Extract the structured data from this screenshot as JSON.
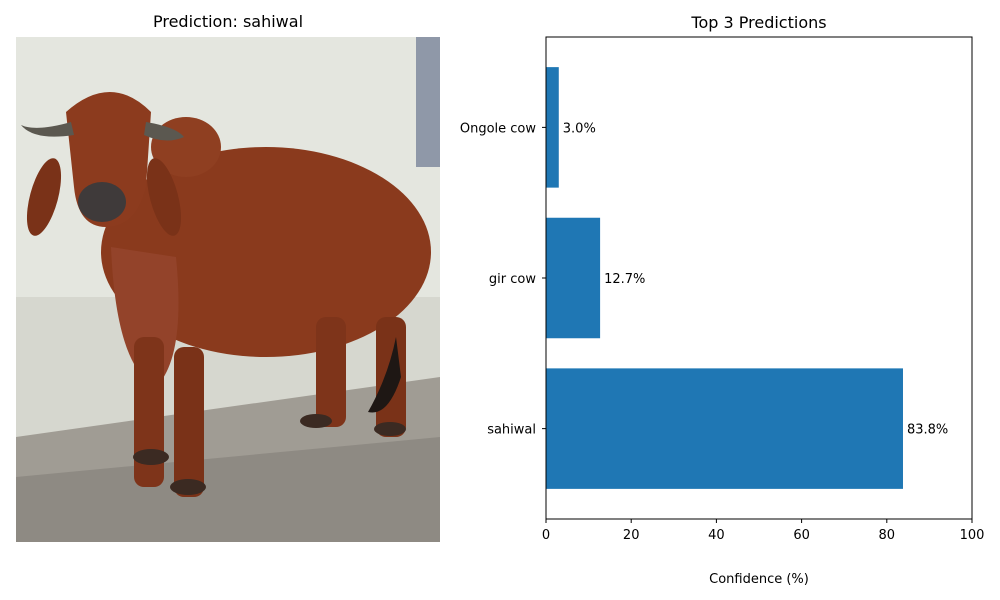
{
  "image_panel": {
    "title": "Prediction: sahiwal"
  },
  "colors": {
    "bar": "#1f77b4",
    "sky_wall": "#e6e8e1",
    "cow_body": "#8c3a1f",
    "ground": "#9e9a92"
  },
  "chart_data": {
    "type": "bar",
    "orientation": "horizontal",
    "title": "Top 3 Predictions",
    "xlabel": "Confidence (%)",
    "ylabel": "",
    "xlim": [
      0,
      100
    ],
    "xticks": [
      0,
      20,
      40,
      60,
      80,
      100
    ],
    "categories": [
      "sahiwal",
      "gir cow",
      "Ongole cow"
    ],
    "values": [
      83.8,
      12.7,
      3.0
    ],
    "labels": [
      "83.8%",
      "12.7%",
      "3.0%"
    ],
    "grid": false
  }
}
